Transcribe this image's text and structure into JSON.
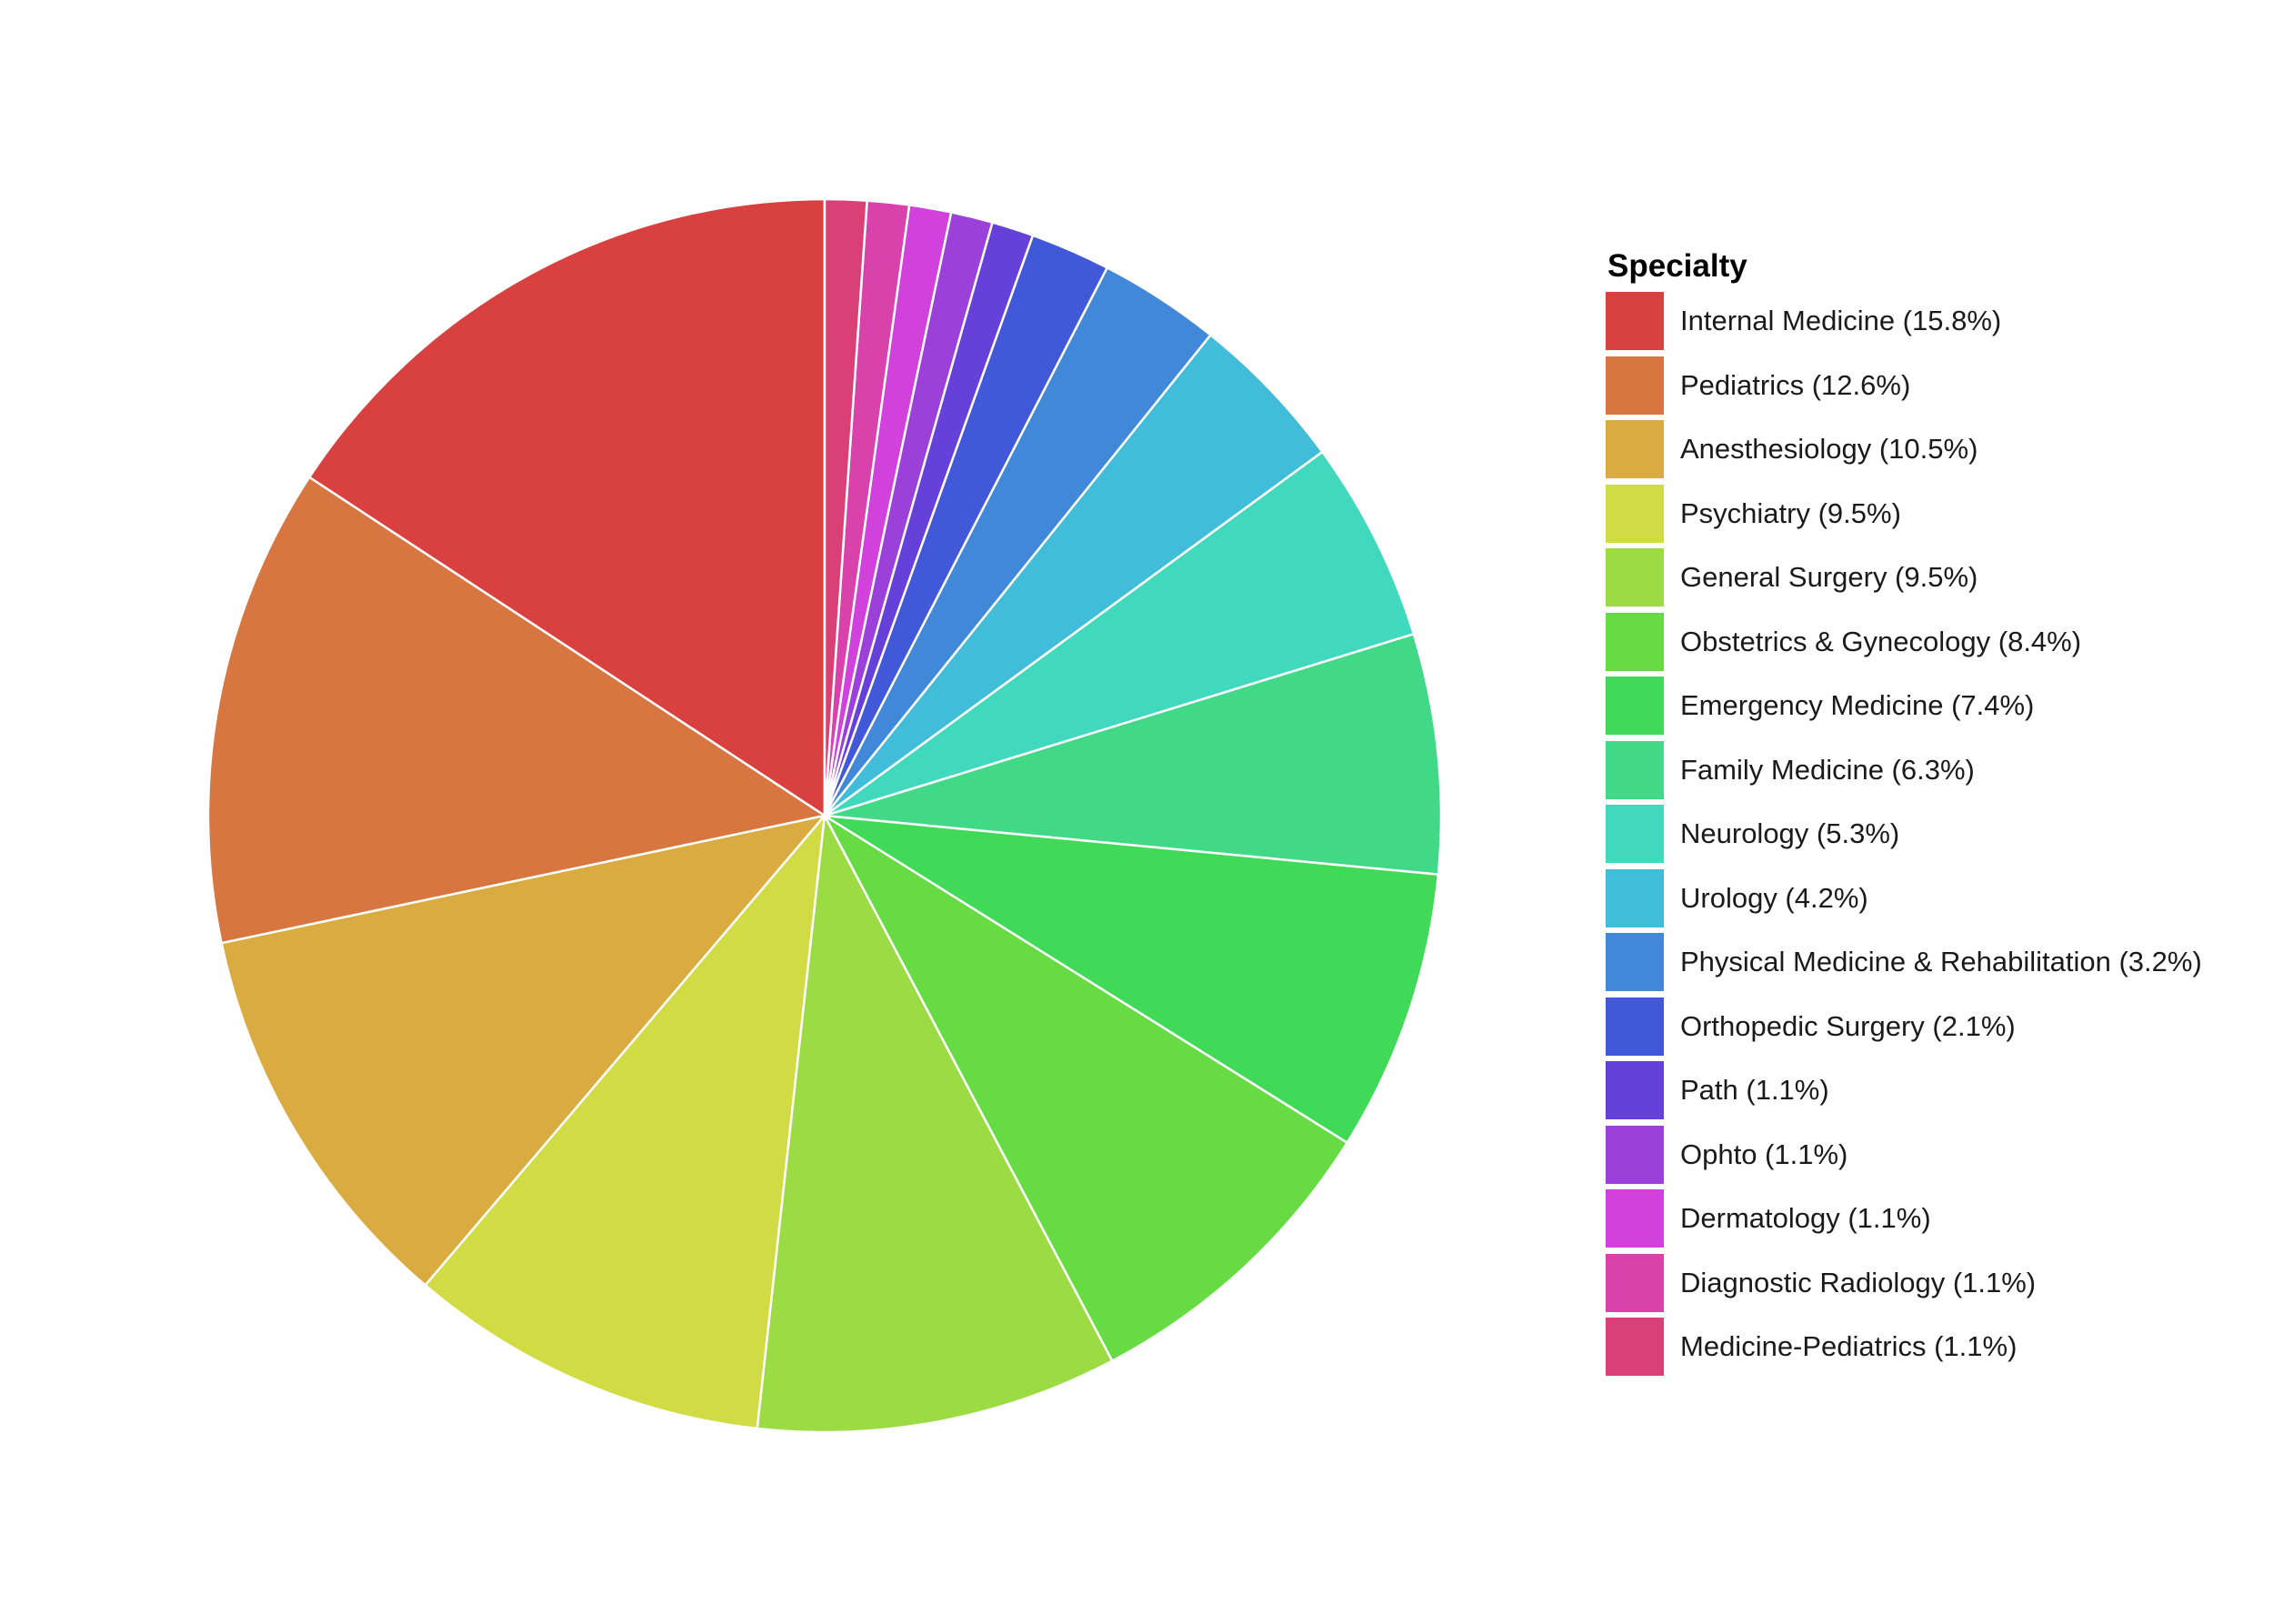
{
  "chart_data": {
    "type": "pie",
    "legend": {
      "title": "Specialty",
      "placement": "right"
    },
    "start_angle": "12 o'clock",
    "direction": "counter-clockwise",
    "slice_border": "#ffffff",
    "slices": [
      {
        "label": "Internal Medicine (15.8%)",
        "value": 15.8,
        "color": "#d94141"
      },
      {
        "label": "Pediatrics (12.6%)",
        "value": 12.6,
        "color": "#d87641"
      },
      {
        "label": "Anesthesiology (10.5%)",
        "value": 10.5,
        "color": "#d9ab41"
      },
      {
        "label": "Psychiatry (9.5%)",
        "value": 9.5,
        "color": "#d1db43"
      },
      {
        "label": "General Surgery (9.5%)",
        "value": 9.5,
        "color": "#9bdb43"
      },
      {
        "label": "Obstetrics & Gynecology (8.4%)",
        "value": 8.4,
        "color": "#66db43"
      },
      {
        "label": "Emergency Medicine (7.4%)",
        "value": 7.4,
        "color": "#41d958"
      },
      {
        "label": "Family Medicine (6.3%)",
        "value": 6.3,
        "color": "#41d988"
      },
      {
        "label": "Neurology (5.3%)",
        "value": 5.3,
        "color": "#41d9bd"
      },
      {
        "label": "Urology (4.2%)",
        "value": 4.2,
        "color": "#41bdd9"
      },
      {
        "label": "Physical Medicine & Rehabilitation (3.2%)",
        "value": 3.2,
        "color": "#4188d9"
      },
      {
        "label": "Orthopedic Surgery (2.1%)",
        "value": 2.1,
        "color": "#4158d9"
      },
      {
        "label": "Path (1.1%)",
        "value": 1.1,
        "color": "#6641d9"
      },
      {
        "label": "Ophto (1.1%)",
        "value": 1.1,
        "color": "#9b41d9"
      },
      {
        "label": "Dermatology (1.1%)",
        "value": 1.1,
        "color": "#d141db"
      },
      {
        "label": "Diagnostic Radiology (1.1%)",
        "value": 1.1,
        "color": "#d941ab"
      },
      {
        "label": "Medicine-Pediatrics (1.1%)",
        "value": 1.1,
        "color": "#d94176"
      }
    ]
  }
}
